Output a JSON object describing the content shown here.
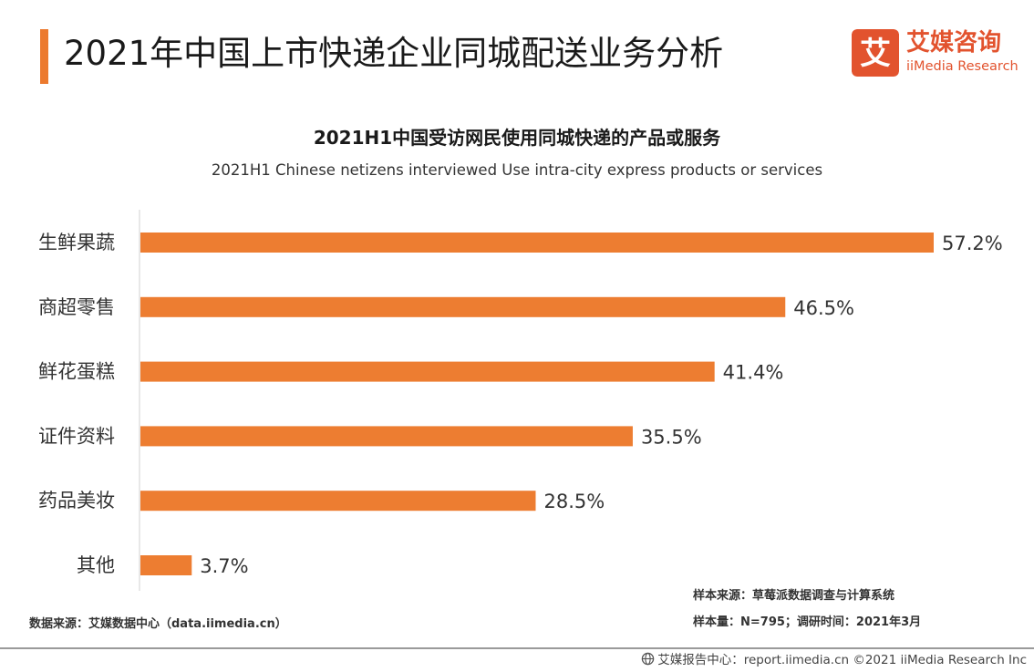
{
  "page_title": "2021年中国上市快递企业同城配送业务分析",
  "logo": {
    "cn": "艾媒咨询",
    "en": "iiMedia Research",
    "mark_char": "艾"
  },
  "colors": {
    "accent": "#EC7A2E",
    "bar": "#ED7D31",
    "logo_red": "#E2532E",
    "axis": "#d0d0d0"
  },
  "chart_data": {
    "type": "bar",
    "orientation": "horizontal",
    "title": "2021H1中国受访网民使用同城快递的产品或服务",
    "subtitle": "2021H1 Chinese netizens interviewed Use intra-city express products or services",
    "categories": [
      "生鲜果蔬",
      "商超零售",
      "鲜花蛋糕",
      "证件资料",
      "药品美妆",
      "其他"
    ],
    "values": [
      57.2,
      46.5,
      41.4,
      35.5,
      28.5,
      3.7
    ],
    "value_labels": [
      "57.2%",
      "46.5%",
      "41.4%",
      "35.5%",
      "28.5%",
      "3.7%"
    ],
    "unit": "%",
    "xlim": [
      0,
      57.2
    ],
    "grid": false,
    "legend": "none"
  },
  "sources": {
    "data_source": "数据来源：艾媒数据中心（data.iimedia.cn）",
    "sample_source": "样本来源：草莓派数据调查与计算系统",
    "sample_size": "样本量：N=795；调研时间：2021年3月"
  },
  "footer": {
    "text": "艾媒报告中心：report.iimedia.cn  ©2021  iiMedia Research  Inc",
    "icon": "globe-icon"
  }
}
